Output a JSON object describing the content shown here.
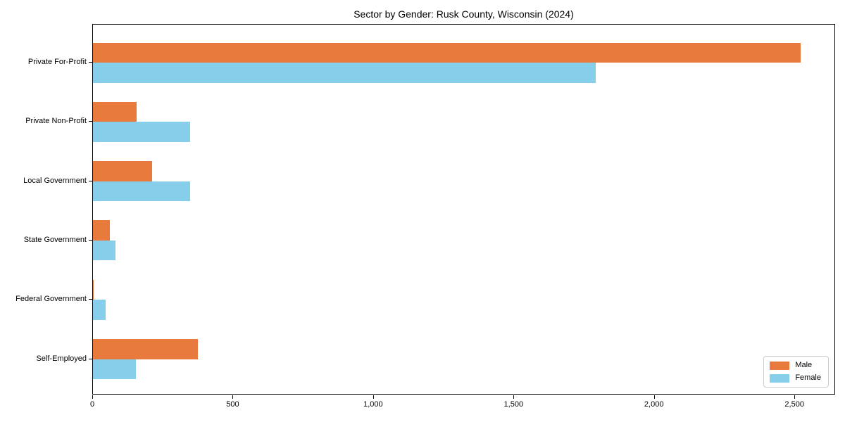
{
  "chart_data": {
    "type": "bar",
    "orientation": "horizontal",
    "title": "Sector by Gender: Rusk County, Wisconsin (2024)",
    "categories": [
      "Private For-Profit",
      "Private Non-Profit",
      "Local Government",
      "State Government",
      "Federal Government",
      "Self-Employed"
    ],
    "series": [
      {
        "name": "Male",
        "color": "#E97A3D",
        "values": [
          2519,
          155,
          211,
          59,
          3,
          374
        ]
      },
      {
        "name": "Female",
        "color": "#87CEEB",
        "values": [
          1791,
          346,
          346,
          79,
          45,
          153
        ]
      }
    ],
    "xlabel": "",
    "ylabel": "",
    "xlim": [
      0,
      2645
    ],
    "x_tick_values": [
      0,
      500,
      1000,
      1500,
      2000,
      2500
    ],
    "x_tick_labels": [
      "0",
      "500",
      "1,000",
      "1,500",
      "2,000",
      "2,500"
    ],
    "legend_position": "lower right",
    "grid": false,
    "background_color": "#ffffff",
    "spine_color": "#000000"
  }
}
